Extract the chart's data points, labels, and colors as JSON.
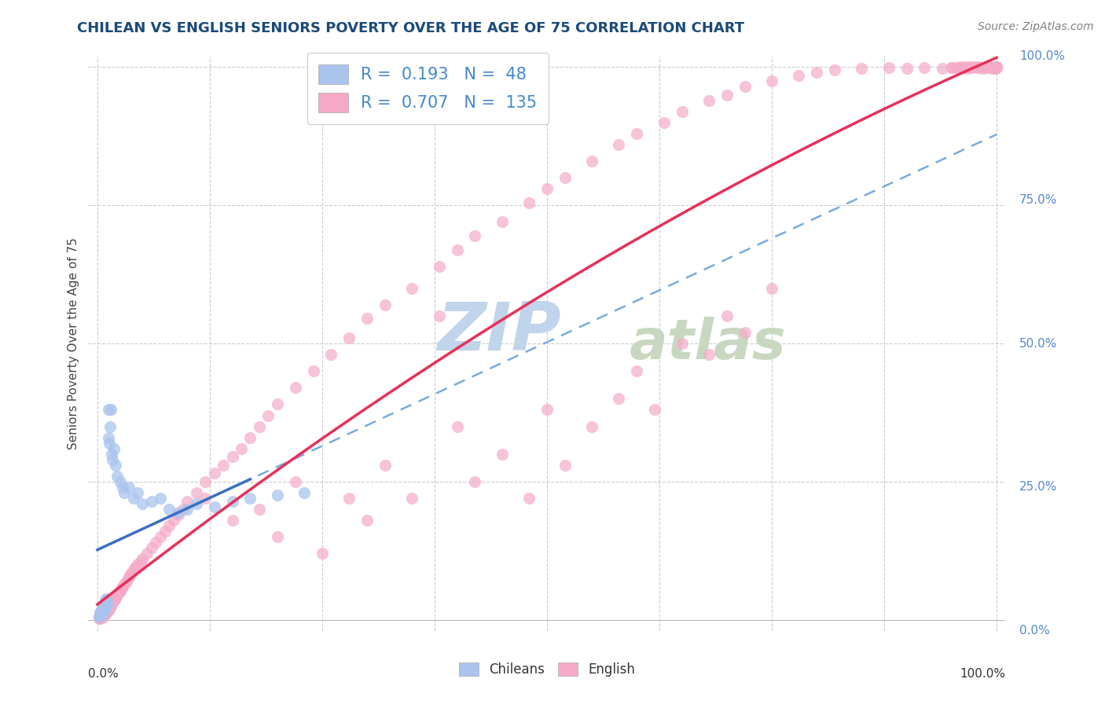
{
  "title": "CHILEAN VS ENGLISH SENIORS POVERTY OVER THE AGE OF 75 CORRELATION CHART",
  "source": "Source: ZipAtlas.com",
  "ylabel": "Seniors Poverty Over the Age of 75",
  "legend_R_chilean": "0.193",
  "legend_N_chilean": "48",
  "legend_R_english": "0.707",
  "legend_N_english": "135",
  "chilean_color": "#aac4ee",
  "english_color": "#f5aac8",
  "trend_chilean_solid_color": "#3a6fc4",
  "trend_chilean_dash_color": "#7aaade",
  "trend_english_color": "#e8305a",
  "background_color": "#ffffff",
  "grid_color": "#cccccc",
  "title_color": "#1a4a7a",
  "watermark_color_zip": "#c0d4ec",
  "watermark_color_atlas": "#c8d8c0"
}
